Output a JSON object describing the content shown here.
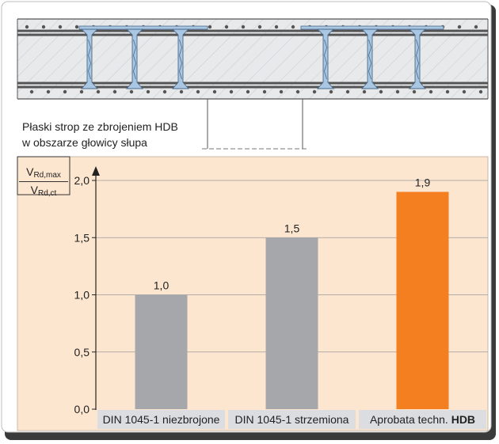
{
  "caption": {
    "line1": "Płaski strop ze zbrojeniem HDB",
    "line2": "w obszarze głowicy słupa"
  },
  "y_title": {
    "numerator_base": "V",
    "numerator_sub": "Rd,max",
    "denominator_base": "V",
    "denominator_sub": "Rd,ct"
  },
  "colors": {
    "chart_bg": "#fde6cf",
    "bar_grey": "#a6a7ab",
    "bar_orange": "#f47f20",
    "slab_fill": "#e8e9eb",
    "anchor_fill": "#a9c6e2",
    "label_box": "#dcdde0"
  },
  "chart_data": {
    "type": "bar",
    "categories": [
      {
        "text": "DIN 1045-1 niezbrojone",
        "bold": ""
      },
      {
        "text": "DIN 1045-1 strzemiona",
        "bold": ""
      },
      {
        "text": "Aprobata techn. ",
        "bold": "HDB"
      }
    ],
    "values": [
      1.0,
      1.5,
      1.9
    ],
    "value_labels": [
      "1,0",
      "1,5",
      "1,9"
    ],
    "highlight_index": 2,
    "yticks": [
      {
        "value": 0.0,
        "label": "0,0"
      },
      {
        "value": 0.5,
        "label": "0,5"
      },
      {
        "value": 1.0,
        "label": "1,0"
      },
      {
        "value": 1.5,
        "label": "1,5"
      },
      {
        "value": 2.0,
        "label": "2,0"
      }
    ],
    "ylim": [
      0,
      2.0
    ],
    "grid": true
  }
}
